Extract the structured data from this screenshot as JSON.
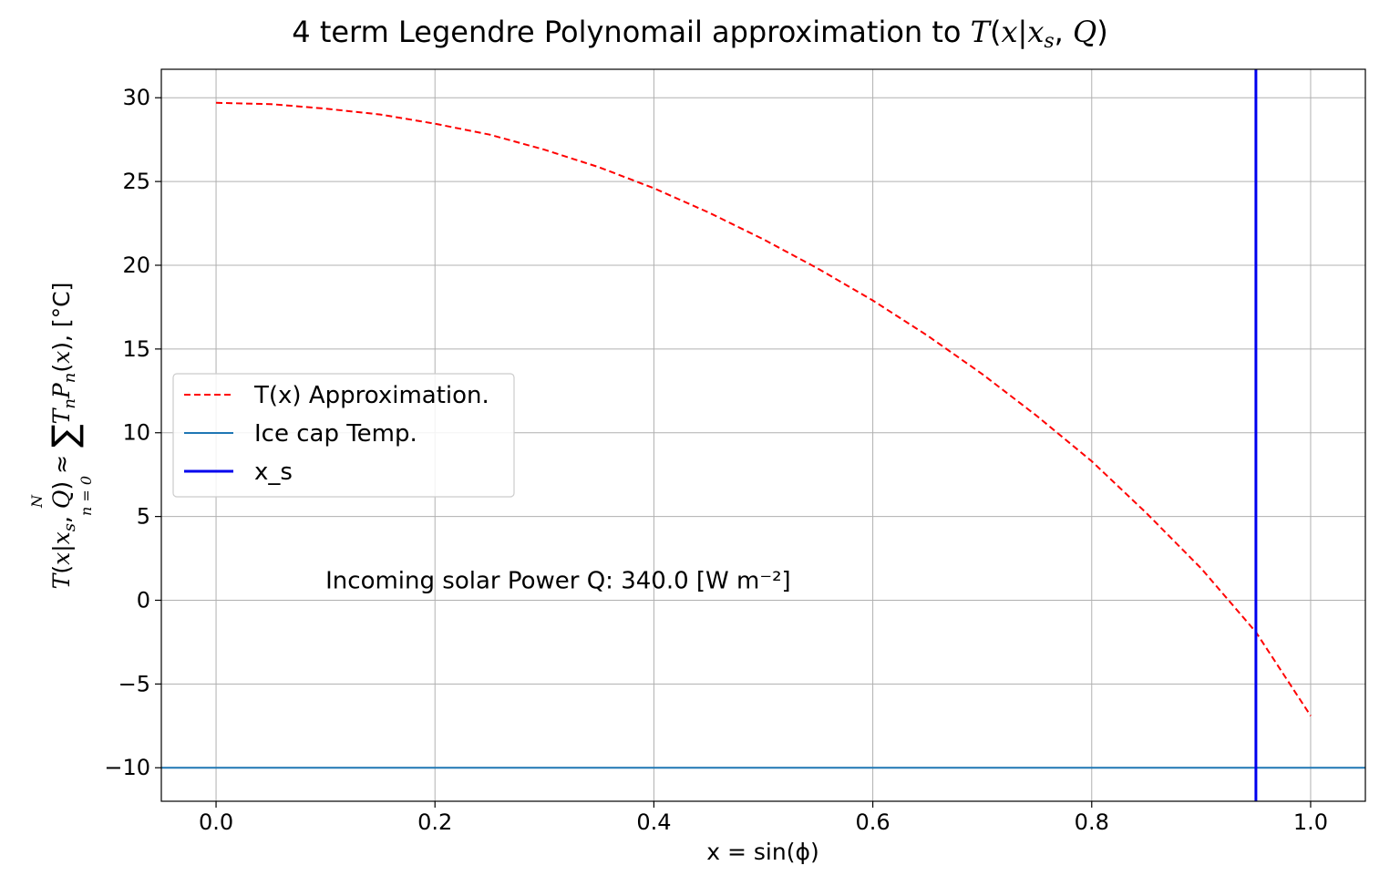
{
  "chart_data": {
    "type": "line",
    "title_prefix": "4 term Legendre Polynomail approximation to ",
    "title_math": "T(x|x_s, Q)",
    "xlabel": "x = sin(ϕ)",
    "ylabel": "T(x|x_s, Q) ≈ ∑_{n=0}^{N} T_n P_n(x), [°C]",
    "xlim": [
      -0.05,
      1.05
    ],
    "ylim": [
      -12,
      31.7
    ],
    "x_ticks": [
      0.0,
      0.2,
      0.4,
      0.6,
      0.8,
      1.0
    ],
    "x_tick_labels": [
      "0.0",
      "0.2",
      "0.4",
      "0.6",
      "0.8",
      "1.0"
    ],
    "y_ticks": [
      -10,
      -5,
      0,
      5,
      10,
      15,
      20,
      25,
      30
    ],
    "y_tick_labels": [
      "−10",
      "−5",
      "0",
      "5",
      "10",
      "15",
      "20",
      "25",
      "30"
    ],
    "grid": true,
    "legend_placement": "center-left",
    "series": [
      {
        "name": "T(x) Approximation.",
        "style": "dashed",
        "color": "#ff0000",
        "x": [
          0.0,
          0.05,
          0.1,
          0.15,
          0.2,
          0.25,
          0.3,
          0.35,
          0.4,
          0.45,
          0.5,
          0.55,
          0.6,
          0.65,
          0.7,
          0.75,
          0.8,
          0.85,
          0.9,
          0.95,
          1.0
        ],
        "y": [
          29.7,
          29.62,
          29.35,
          29.0,
          28.45,
          27.8,
          26.9,
          25.85,
          24.6,
          23.15,
          21.55,
          19.8,
          17.9,
          15.8,
          13.5,
          11.0,
          8.3,
          5.2,
          1.9,
          -1.9,
          -6.9
        ]
      },
      {
        "name": "Ice cap Temp.",
        "style": "solid",
        "color": "#1f77b4",
        "type": "hline",
        "y": -10
      },
      {
        "name": "x_s",
        "style": "solid",
        "color": "#0000ee",
        "type": "vline",
        "x": 0.95
      }
    ],
    "annotations": [
      {
        "text": "Incoming solar Power Q: 340.0 [W m⁻²]",
        "x": 0.1,
        "y": 0.7
      }
    ]
  }
}
